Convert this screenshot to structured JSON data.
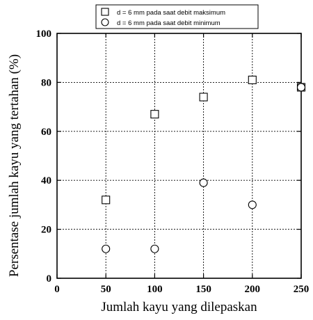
{
  "chart_data": {
    "type": "scatter",
    "xlabel": "Jumlah kayu yang dilepaskan",
    "ylabel": "Persentase jumlah kayu yang tertahan (%)",
    "xlim": [
      0,
      250
    ],
    "ylim": [
      0,
      100
    ],
    "x_ticks": [
      "0",
      "50",
      "100",
      "150",
      "200",
      "250"
    ],
    "y_ticks": [
      "0",
      "20",
      "40",
      "60",
      "80",
      "100"
    ],
    "grid": true,
    "legend_position": "top-center",
    "series": [
      {
        "name": "d = 6 mm pada saat debit maksimum",
        "marker": "square",
        "x": [
          50,
          100,
          150,
          200,
          250
        ],
        "y": [
          32,
          67,
          74,
          81,
          78
        ]
      },
      {
        "name": "d = 6 mm pada saat debit minimum",
        "marker": "circle",
        "x": [
          50,
          100,
          150,
          200,
          250
        ],
        "y": [
          12,
          12,
          39,
          30,
          78
        ]
      }
    ]
  }
}
